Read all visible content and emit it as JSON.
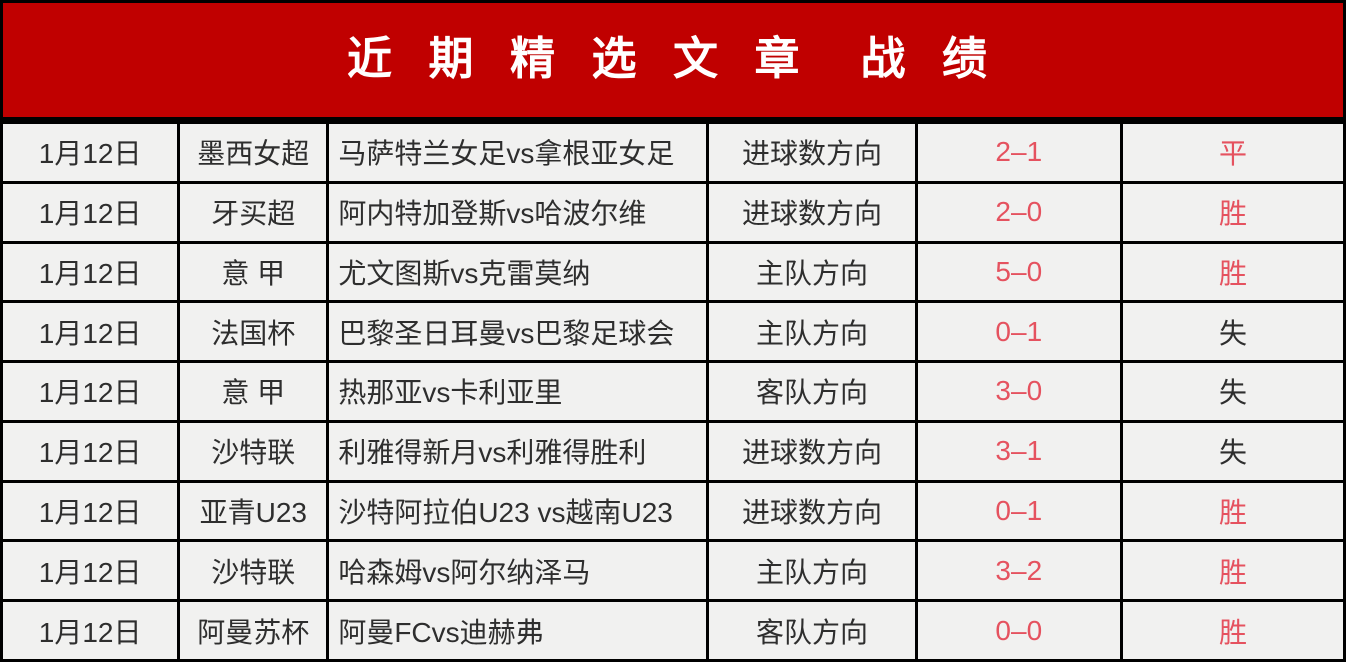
{
  "header": {
    "title": "近 期 精 选 文 章  战 绩"
  },
  "colors": {
    "header_bg": "#C00000",
    "header_text": "#FFFFFF",
    "row_bg": "#F1F1F0",
    "border": "#000000",
    "score_red": "#E5525F",
    "text_dark": "#2E2E2E"
  },
  "table": {
    "rows": [
      {
        "date": "1月12日",
        "league": "墨西女超",
        "match": "马萨特兰女足vs拿根亚女足",
        "direction": "进球数方向",
        "score": "2–1",
        "result": "平",
        "result_red": true
      },
      {
        "date": "1月12日",
        "league": "牙买超",
        "match": "阿内特加登斯vs哈波尔维",
        "direction": "进球数方向",
        "score": "2–0",
        "result": "胜",
        "result_red": true
      },
      {
        "date": "1月12日",
        "league": "意 甲",
        "match": "尤文图斯vs克雷莫纳",
        "direction": "主队方向",
        "score": "5–0",
        "result": "胜",
        "result_red": true
      },
      {
        "date": "1月12日",
        "league": "法国杯",
        "match": "巴黎圣日耳曼vs巴黎足球会",
        "direction": "主队方向",
        "score": "0–1",
        "result": "失",
        "result_red": false
      },
      {
        "date": "1月12日",
        "league": "意 甲",
        "match": "热那亚vs卡利亚里",
        "direction": "客队方向",
        "score": "3–0",
        "result": "失",
        "result_red": false
      },
      {
        "date": "1月12日",
        "league": "沙特联",
        "match": "利雅得新月vs利雅得胜利",
        "direction": "进球数方向",
        "score": "3–1",
        "result": "失",
        "result_red": false
      },
      {
        "date": "1月12日",
        "league": "亚青U23",
        "match": "沙特阿拉伯U23 vs越南U23",
        "direction": "进球数方向",
        "score": "0–1",
        "result": "胜",
        "result_red": true
      },
      {
        "date": "1月12日",
        "league": "沙特联",
        "match": "哈森姆vs阿尔纳泽马",
        "direction": "主队方向",
        "score": "3–2",
        "result": "胜",
        "result_red": true
      },
      {
        "date": "1月12日",
        "league": "阿曼苏杯",
        "match": "阿曼FCvs迪赫弗",
        "direction": "客队方向",
        "score": "0–0",
        "result": "胜",
        "result_red": true
      }
    ]
  }
}
